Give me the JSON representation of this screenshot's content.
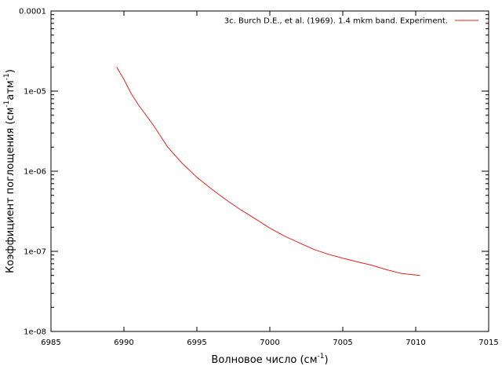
{
  "chart_data": {
    "type": "line",
    "title": "",
    "xlabel": "Волновое число (см",
    "xlabel_sup": "-1",
    "xlabel_end": ")",
    "ylabel": {
      "part1": "Коэффициент поглощения (см",
      "sup1": "-1",
      "part2": "атм",
      "sup2": "-1",
      "part3": ")"
    },
    "xlim": [
      6985,
      7015
    ],
    "ylim": [
      1e-08,
      0.0001
    ],
    "yscale": "log",
    "xticks": [
      6985,
      6990,
      6995,
      7000,
      7005,
      7010,
      7015
    ],
    "xtick_labels": [
      "6985",
      "6990",
      "6995",
      "7000",
      "7005",
      "7010",
      "7015"
    ],
    "yticks": [
      1e-08,
      1e-07,
      1e-06,
      1e-05,
      0.0001
    ],
    "ytick_labels": [
      "1e-08",
      "1e-07",
      "1e-06",
      "1e-05",
      "0.0001"
    ],
    "grid": false,
    "legend_position": "top-right",
    "series": [
      {
        "name": "3c. Burch D.E., et al. (1969). 1.4 mkm band. Experiment.",
        "color": "#e8201e",
        "x": [
          6989.5,
          6990.0,
          6990.5,
          6991.0,
          6992.0,
          6993.0,
          6994.0,
          6995.0,
          6996.0,
          6997.0,
          6998.0,
          6999.0,
          7000.0,
          7001.0,
          7002.0,
          7003.0,
          7004.0,
          7005.0,
          7006.0,
          7007.0,
          7008.0,
          7009.0,
          7010.3
        ],
        "y": [
          2e-05,
          1.4e-05,
          9.3e-06,
          6.7e-06,
          3.8e-06,
          2e-06,
          1.25e-06,
          8.4e-07,
          6e-07,
          4.4e-07,
          3.3e-07,
          2.55e-07,
          1.95e-07,
          1.55e-07,
          1.28e-07,
          1.06e-07,
          9.2e-08,
          8.2e-08,
          7.4e-08,
          6.7e-08,
          5.9e-08,
          5.3e-08,
          5e-08
        ]
      }
    ]
  }
}
